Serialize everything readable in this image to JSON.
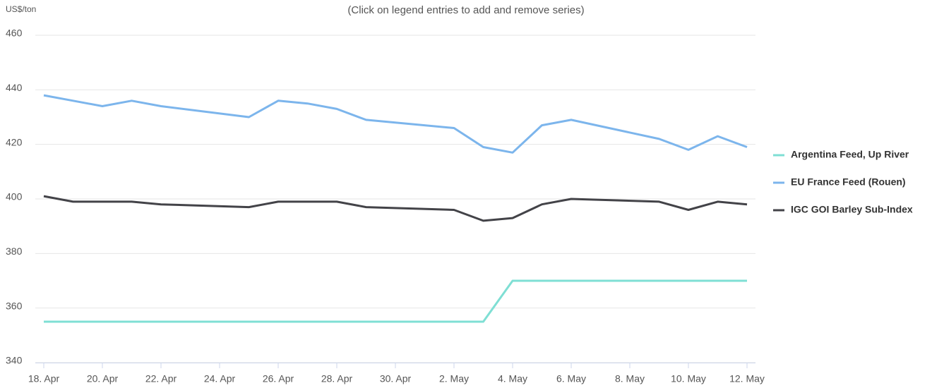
{
  "chart_data": {
    "type": "line",
    "subtitle": "(Click on legend entries to add and remove series)",
    "y_label": "US$/ton",
    "x": [
      "18. Apr",
      "19. Apr",
      "20. Apr",
      "21. Apr",
      "22. Apr",
      "25. Apr",
      "26. Apr",
      "27. Apr",
      "28. Apr",
      "29. Apr",
      "2. May",
      "3. May",
      "4. May",
      "5. May",
      "6. May",
      "9. May",
      "10. May",
      "11. May",
      "12. May"
    ],
    "series": [
      {
        "name": "Argentina Feed, Up River",
        "color": "#7fdfd4",
        "values": [
          355,
          355,
          355,
          355,
          355,
          355,
          355,
          355,
          355,
          355,
          355,
          355,
          370,
          370,
          370,
          370,
          370,
          370,
          370
        ]
      },
      {
        "name": "EU France Feed (Rouen)",
        "color": "#7cb5ec",
        "values": [
          438,
          436,
          434,
          436,
          434,
          430,
          436,
          435,
          433,
          429,
          426,
          419,
          417,
          427,
          429,
          422,
          418,
          423,
          419
        ]
      },
      {
        "name": "IGC GOI Barley Sub-Index",
        "color": "#434348",
        "values": [
          401,
          399,
          399,
          399,
          398,
          397,
          399,
          399,
          399,
          397,
          396,
          392,
          393,
          398,
          400,
          399,
          396,
          399,
          398
        ]
      }
    ],
    "xticks": [
      "18. Apr",
      "20. Apr",
      "22. Apr",
      "24. Apr",
      "26. Apr",
      "28. Apr",
      "30. Apr",
      "2. May",
      "4. May",
      "6. May",
      "8. May",
      "10. May",
      "12. May"
    ],
    "ylim": [
      340,
      460
    ],
    "yticks": [
      340,
      360,
      380,
      400,
      420,
      440,
      460
    ],
    "grid": true,
    "legend": "right"
  }
}
